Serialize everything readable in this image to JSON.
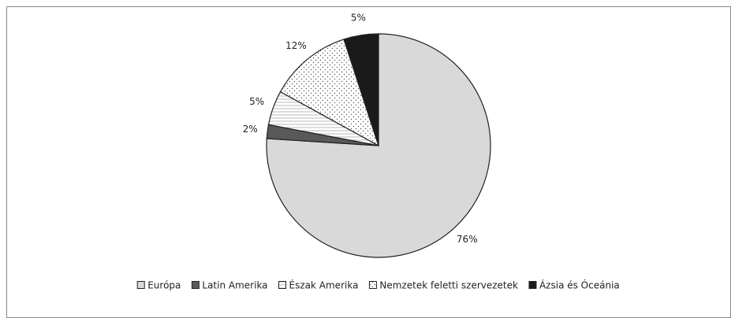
{
  "chart_data": {
    "type": "pie",
    "categories": [
      "Európa",
      "Latin Amerika",
      "Észak Amerika",
      "Nemzetek feletti szervezetek",
      "Ázsia és Óceánia"
    ],
    "values": [
      76,
      2,
      5,
      12,
      5
    ],
    "value_labels": [
      "76%",
      "2%",
      "5%",
      "12%",
      "5%"
    ],
    "fills": [
      "#d9d9d9",
      "#595959",
      "hlines",
      "dots",
      "#1a1a1a"
    ],
    "start_angle": 0,
    "direction": "clockwise",
    "legend": "bottom"
  }
}
